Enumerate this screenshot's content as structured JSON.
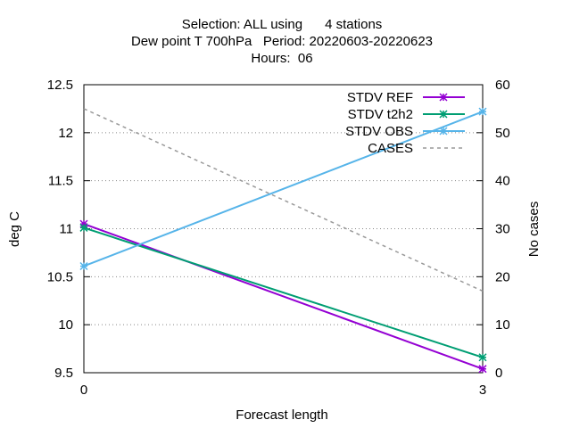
{
  "chart_data": {
    "type": "line",
    "title_lines": [
      "Selection: ALL using      4 stations",
      "Dew point T 700hPa   Period: 20220603-20220623",
      "Hours:  06"
    ],
    "xlabel": "Forecast length",
    "ylabel": "deg C",
    "y2label": "No cases",
    "x": [
      0,
      3
    ],
    "xlim": [
      0,
      3
    ],
    "ylim": [
      9.5,
      12.5
    ],
    "y2lim": [
      0,
      60
    ],
    "x_ticks": [
      0,
      3
    ],
    "y_ticks": [
      9.5,
      10,
      10.5,
      11,
      11.5,
      12,
      12.5
    ],
    "y2_ticks": [
      0,
      10,
      20,
      30,
      40,
      50,
      60
    ],
    "grid": "horizontal-dotted",
    "legend_position": "top-right",
    "series": [
      {
        "name": "STDV REF",
        "axis": "y",
        "color": "#9400d3",
        "style": "solid",
        "marker": "x",
        "values": [
          11.05,
          9.54
        ]
      },
      {
        "name": "STDV t2h2",
        "axis": "y",
        "color": "#009e73",
        "style": "solid",
        "marker": "x",
        "values": [
          11.01,
          9.66
        ]
      },
      {
        "name": "STDV OBS",
        "axis": "y",
        "color": "#56b4e9",
        "style": "solid",
        "marker": "x",
        "values": [
          10.61,
          12.22
        ]
      },
      {
        "name": "CASES",
        "axis": "y2",
        "color": "#999999",
        "style": "dashed",
        "marker": "none",
        "values": [
          55,
          17
        ]
      }
    ]
  }
}
